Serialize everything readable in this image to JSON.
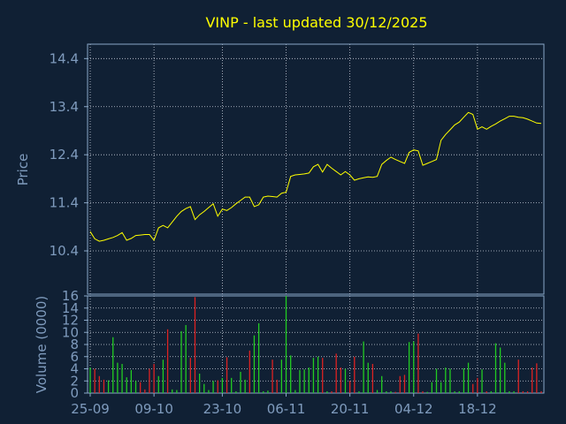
{
  "chart_data": {
    "title": "VINP - last updated 30/12/2025",
    "colors": {
      "background": "#102034",
      "axis": "#8aa8c8",
      "text": "#7f9bbd",
      "title": "#ffff00",
      "price_line": "#ffff00",
      "volume_up": "#22cc22",
      "volume_down": "#dd2222"
    },
    "price": {
      "type": "line",
      "ylabel": "Price",
      "ylim": [
        9.5,
        14.7
      ],
      "yticks": [
        "14.4",
        "13.4",
        "12.4",
        "11.4",
        "10.4"
      ],
      "ytick_values": [
        14.4,
        13.4,
        12.4,
        11.4,
        10.4
      ],
      "grid": true,
      "values": [
        10.8,
        10.65,
        10.6,
        10.62,
        10.65,
        10.68,
        10.72,
        10.78,
        10.62,
        10.66,
        10.72,
        10.73,
        10.74,
        10.74,
        10.62,
        10.88,
        10.93,
        10.88,
        11.0,
        11.12,
        11.22,
        11.28,
        11.32,
        11.05,
        11.15,
        11.22,
        11.3,
        11.38,
        11.12,
        11.27,
        11.24,
        11.3,
        11.38,
        11.45,
        11.52,
        11.52,
        11.32,
        11.36,
        11.52,
        11.54,
        11.53,
        11.52,
        11.6,
        11.62,
        11.95,
        11.98,
        11.99,
        12.0,
        12.02,
        12.15,
        12.2,
        12.04,
        12.2,
        12.12,
        12.05,
        11.98,
        12.05,
        11.98,
        11.87,
        11.9,
        11.92,
        11.94,
        11.93,
        11.95,
        12.2,
        12.28,
        12.35,
        12.3,
        12.26,
        12.22,
        12.45,
        12.5,
        12.48,
        12.18,
        12.22,
        12.26,
        12.3,
        12.7,
        12.82,
        12.92,
        13.02,
        13.08,
        13.18,
        13.28,
        13.24,
        12.93,
        12.98,
        12.93,
        12.99,
        13.04,
        13.1,
        13.15,
        13.2,
        13.2,
        13.18,
        13.17,
        13.14,
        13.1,
        13.06,
        13.05
      ]
    },
    "volume": {
      "type": "bar",
      "ylabel": "Volume (0000)",
      "ylim": [
        0,
        16
      ],
      "yticks": [
        "16",
        "14",
        "12",
        "10",
        "8",
        "6",
        "4",
        "2",
        "0"
      ],
      "ytick_values": [
        16,
        14,
        12,
        10,
        8,
        6,
        4,
        2,
        0
      ],
      "grid": true,
      "values": [
        4.2,
        4.0,
        2.8,
        2.2,
        2.1,
        9.2,
        5.0,
        4.8,
        2.6,
        3.8,
        2.0,
        1.8,
        0.6,
        4.0,
        4.8,
        2.8,
        5.5,
        10.5,
        0.6,
        0.5,
        10.2,
        11.2,
        5.8,
        15.8,
        3.2,
        1.5,
        0.5,
        2.0,
        2.1,
        2.5,
        5.9,
        2.5,
        0.3,
        3.5,
        2.2,
        7.0,
        9.5,
        11.5,
        0.3,
        0.4,
        5.5,
        2.2,
        5.5,
        16.0,
        6.2,
        0.5,
        3.8,
        3.9,
        4.2,
        5.8,
        6.0,
        5.8,
        0.3,
        0.3,
        6.5,
        4.2,
        4.0,
        2.0,
        6.0,
        0.3,
        8.5,
        5.0,
        4.8,
        0.5,
        2.8,
        0.3,
        0.3,
        0.2,
        2.8,
        3.0,
        8.4,
        8.5,
        9.8,
        0.3,
        0.2,
        1.8,
        4.0,
        1.8,
        4.2,
        4.0,
        0.3,
        0.3,
        4.1,
        5.0,
        1.5,
        2.5,
        3.9,
        0.3,
        0.3,
        8.2,
        7.5,
        5.0,
        0.3,
        0.3,
        5.5,
        0.3,
        0.3,
        4.2,
        4.9,
        0.3
      ],
      "directions": [
        1,
        -1,
        -1,
        -1,
        1,
        1,
        1,
        1,
        1,
        1,
        1,
        -1,
        -1,
        -1,
        -1,
        1,
        1,
        -1,
        1,
        1,
        1,
        1,
        -1,
        -1,
        1,
        1,
        1,
        1,
        -1,
        1,
        -1,
        1,
        1,
        1,
        1,
        -1,
        1,
        1,
        1,
        1,
        -1,
        -1,
        1,
        1,
        1,
        1,
        1,
        1,
        1,
        1,
        1,
        -1,
        1,
        -1,
        -1,
        -1,
        1,
        -1,
        -1,
        1,
        1,
        1,
        -1,
        1,
        1,
        1,
        1,
        -1,
        -1,
        -1,
        1,
        1,
        -1,
        -1,
        1,
        1,
        1,
        1,
        1,
        1,
        1,
        1,
        1,
        1,
        -1,
        -1,
        1,
        -1,
        1,
        1,
        1,
        1,
        1,
        1,
        -1,
        -1,
        -1,
        -1,
        -1,
        -1
      ]
    },
    "x": {
      "type": "dates",
      "tick_labels": [
        "25-09",
        "09-10",
        "23-10",
        "06-11",
        "20-11",
        "04-12",
        "18-12"
      ],
      "tick_positions": [
        0,
        14,
        29,
        43,
        57,
        71,
        85
      ],
      "count": 100
    }
  }
}
